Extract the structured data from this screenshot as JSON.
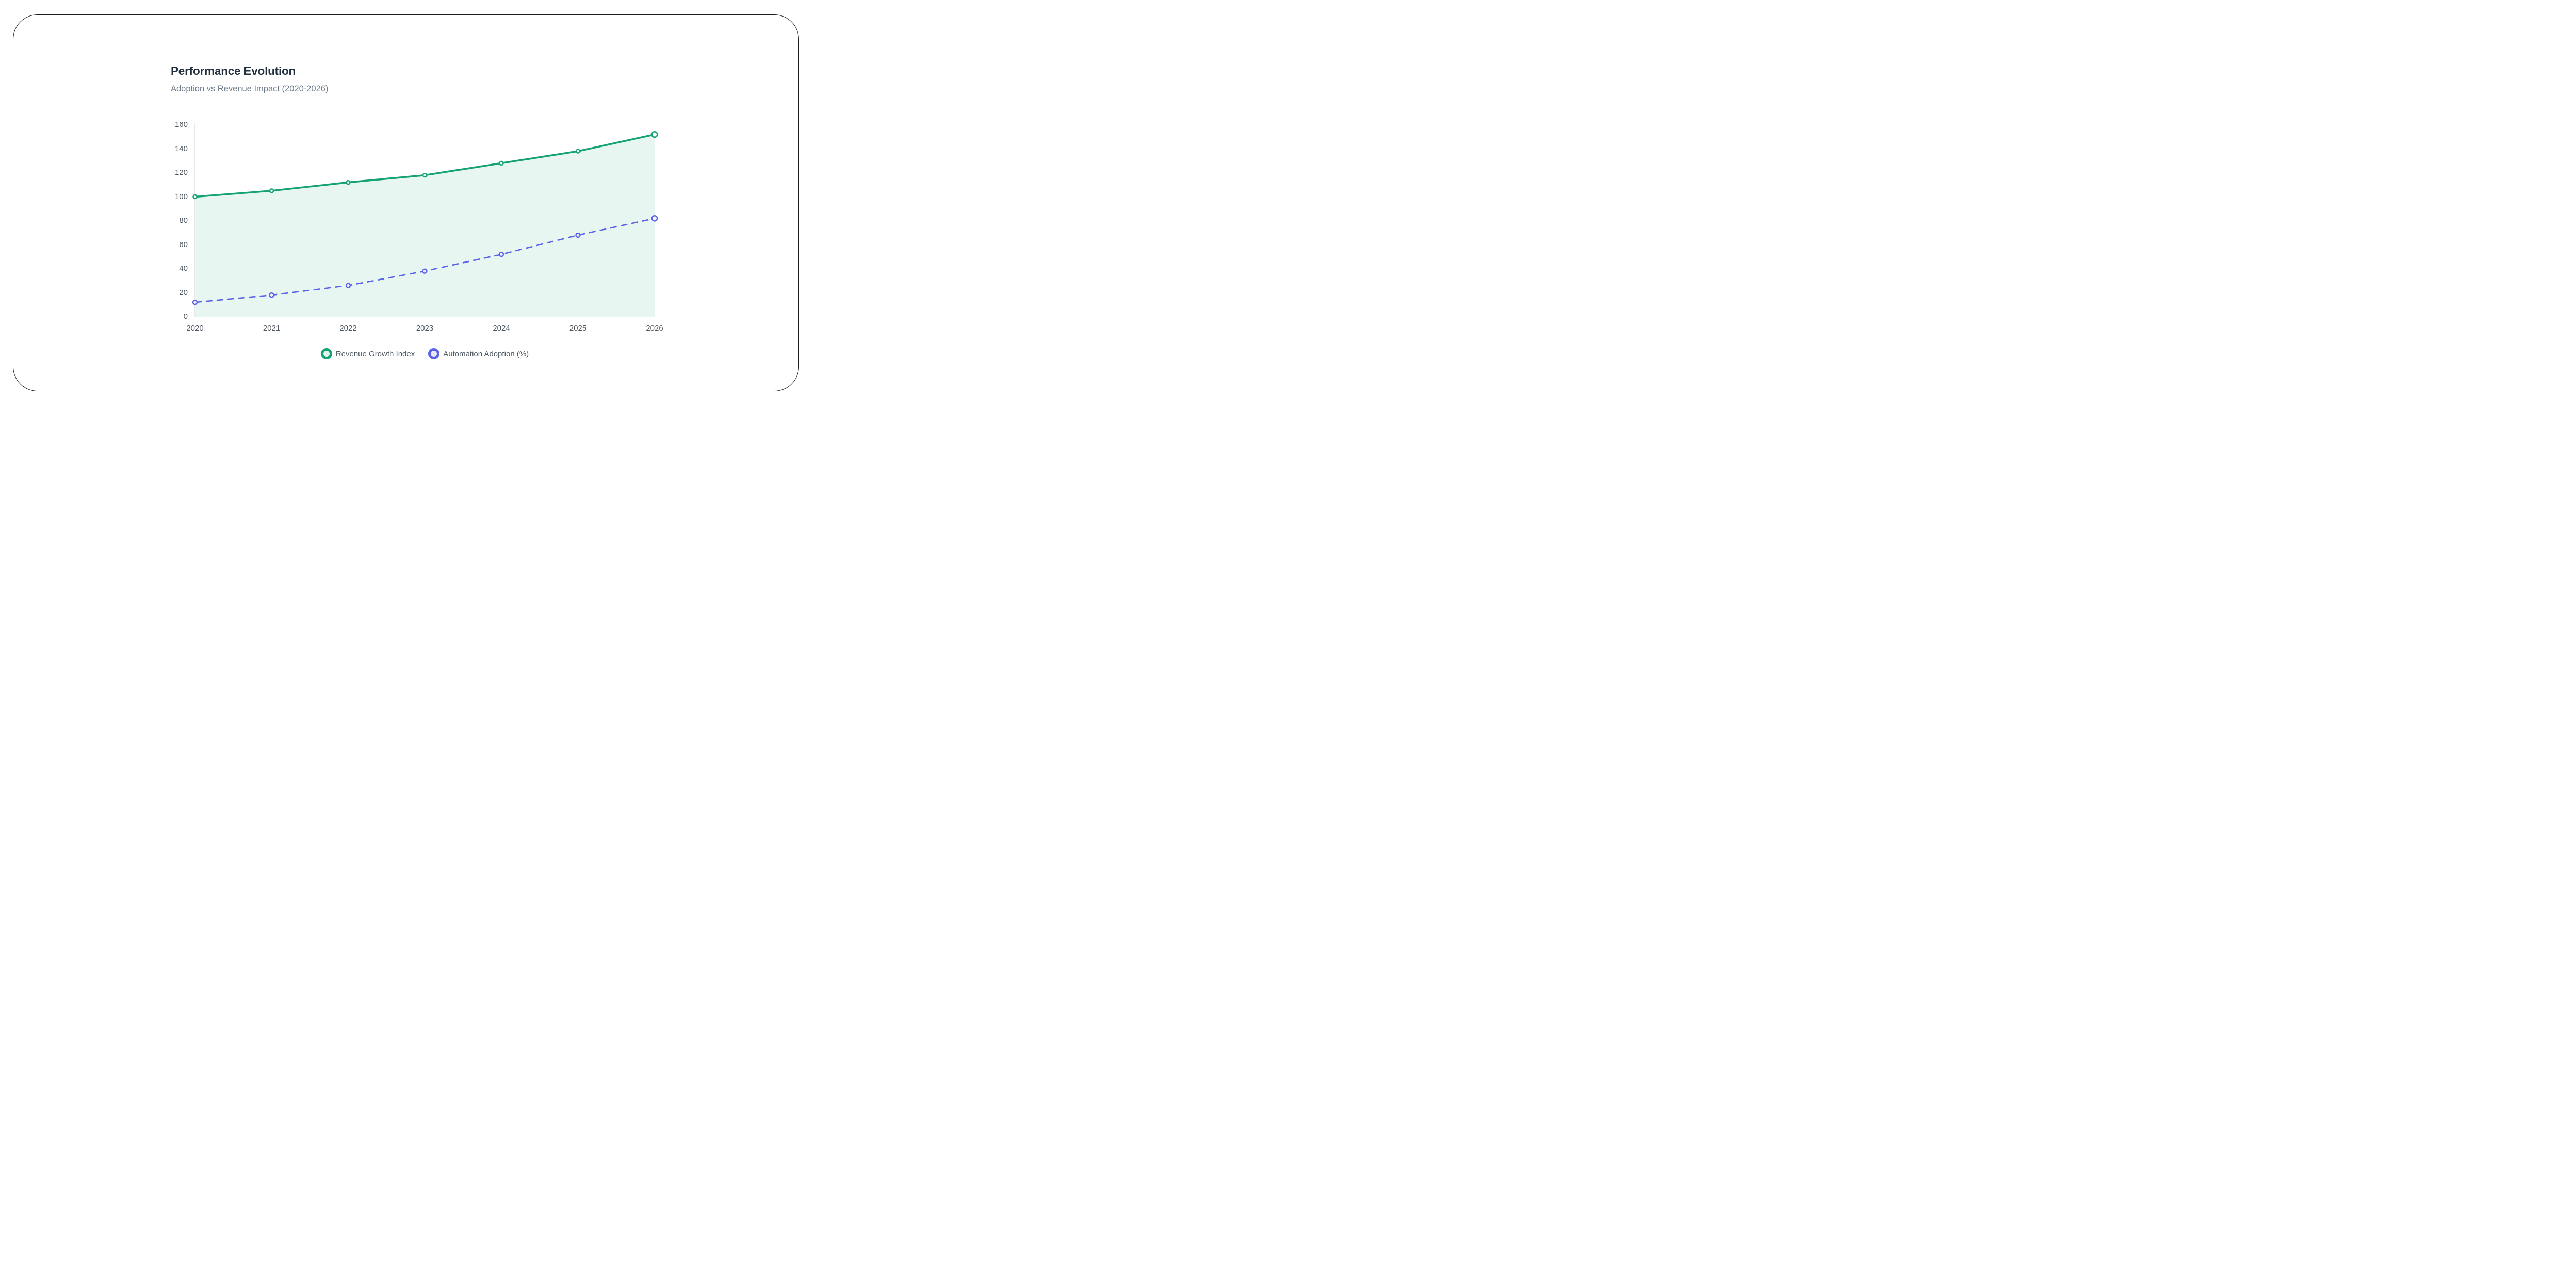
{
  "window": {
    "background": "#ffffff",
    "border_color": "#1b1b1b"
  },
  "header": {
    "title": "Performance Evolution",
    "subtitle": "Adoption vs Revenue Impact (2020-2026)"
  },
  "chart_data": {
    "type": "line",
    "title": "Performance Evolution",
    "subtitle": "Adoption vs Revenue Impact (2020-2026)",
    "categories": [
      "2020",
      "2021",
      "2022",
      "2023",
      "2024",
      "2025",
      "2026"
    ],
    "series": [
      {
        "name": "Revenue Growth Index",
        "values": [
          100,
          105,
          112,
          118,
          128,
          138,
          152
        ],
        "color": "#15a374",
        "line_style": "solid",
        "marker": "circle-open",
        "area_fill": true,
        "legend_swatch_fill": "#e4f4ec"
      },
      {
        "name": "Automation Adoption (%)",
        "values": [
          12,
          18,
          26,
          38,
          52,
          68,
          82
        ],
        "color": "#5b62ea",
        "line_style": "dashed",
        "marker": "circle-open",
        "area_fill": false,
        "legend_swatch_fill": "#e7e8f1"
      }
    ],
    "xlabel": "",
    "ylabel": "",
    "ylim": [
      0,
      160
    ],
    "yticks": [
      0,
      20,
      40,
      60,
      80,
      100,
      120,
      140,
      160
    ],
    "grid": false,
    "legend_position": "bottom",
    "area_fill_color": "rgba(21,163,116,0.10)",
    "axis_line_color": "#d9dee3",
    "axis_label_color": "#4d565f"
  }
}
